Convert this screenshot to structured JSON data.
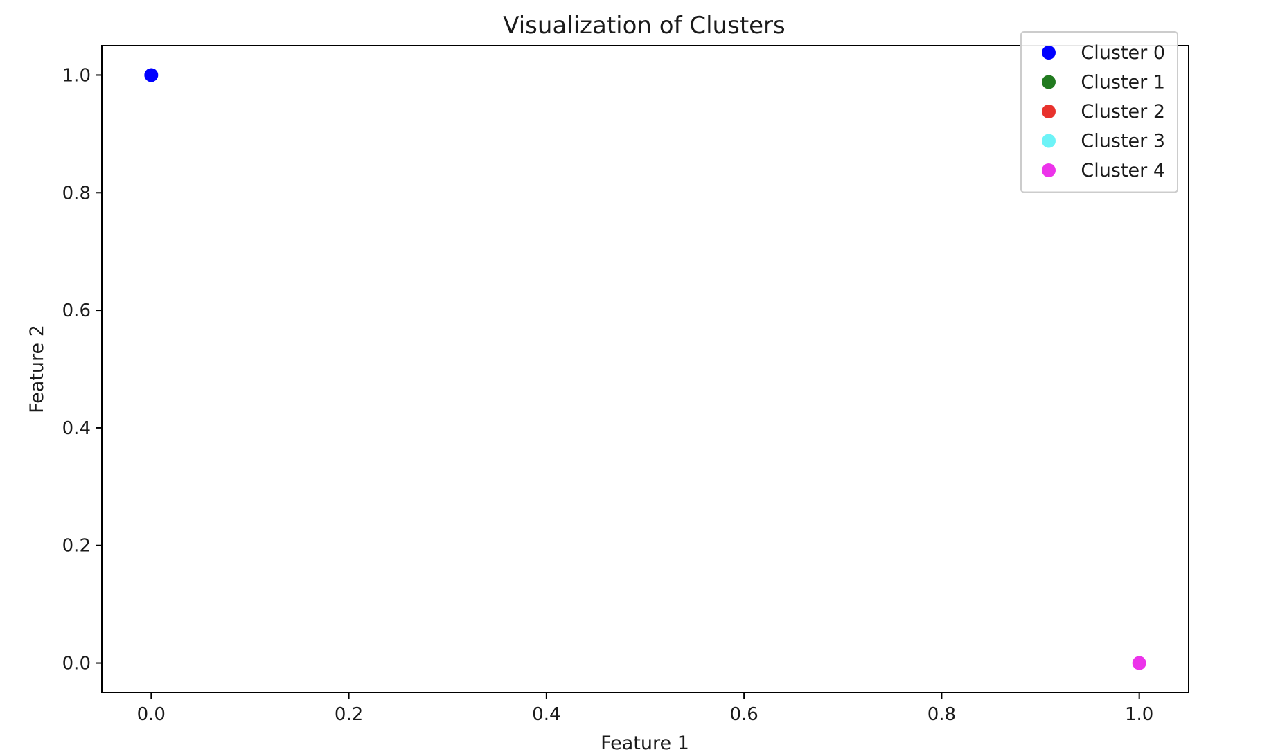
{
  "chart_data": {
    "type": "scatter",
    "title": "Visualization of Clusters",
    "xlabel": "Feature 1",
    "ylabel": "Feature 2",
    "xlim": [
      -0.05,
      1.05
    ],
    "ylim": [
      -0.05,
      1.05
    ],
    "xticks": [
      "0.0",
      "0.2",
      "0.4",
      "0.6",
      "0.8",
      "1.0"
    ],
    "yticks": [
      "0.0",
      "0.2",
      "0.4",
      "0.6",
      "0.8",
      "1.0"
    ],
    "grid": false,
    "legend_position": "top-right",
    "series": [
      {
        "name": "Cluster 0",
        "color": "#0000ff",
        "points": [
          [
            0.0,
            1.0
          ]
        ]
      },
      {
        "name": "Cluster 1",
        "color": "#217a1f",
        "points": []
      },
      {
        "name": "Cluster 2",
        "color": "#e8322d",
        "points": []
      },
      {
        "name": "Cluster 3",
        "color": "#6df3f7",
        "points": []
      },
      {
        "name": "Cluster 4",
        "color": "#ec33ea",
        "points": [
          [
            1.0,
            0.0
          ]
        ]
      }
    ]
  }
}
